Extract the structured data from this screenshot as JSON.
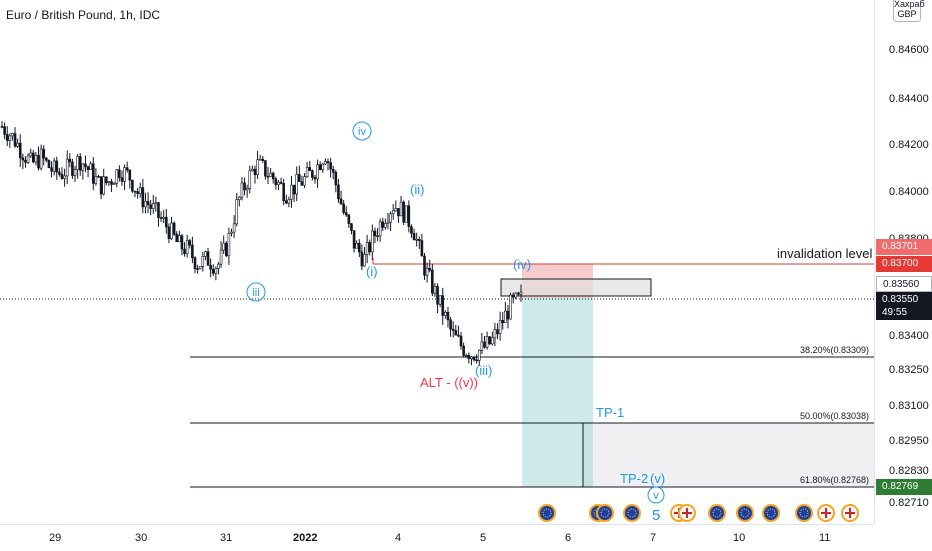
{
  "title": "Euro / British Pound, 1h, IDC",
  "currency_box": {
    "line1": "Хахраб",
    "line2": "GBP"
  },
  "price_axis": {
    "ticks": [
      "0.84600",
      "0.84400",
      "0.84200",
      "0.84000",
      "0.83800",
      "0.83400",
      "0.83250",
      "0.83100",
      "0.82950",
      "0.82830",
      "0.82710"
    ],
    "tags": {
      "invalidation_top": "0.83701",
      "invalidation_bottom": "0.83700",
      "box_top": "0.83560",
      "current_price": "0.83550",
      "countdown": "49:55",
      "tp2": "0.82769"
    }
  },
  "time_axis": {
    "labels": [
      "29",
      "30",
      "31",
      "2022",
      "4",
      "5",
      "6",
      "7",
      "10",
      "11"
    ]
  },
  "annotations": {
    "invalidation": "invalidation level",
    "fib_382": "38.20%(0.83309)",
    "fib_500": "50.00%(0.83038)",
    "fib_618": "61.80%(0.82768)",
    "tp1": "TP-1",
    "tp2": "TP-2",
    "wave_iv": "iv",
    "wave_ii": "(ii)",
    "wave_i": "(i)",
    "wave_iii_circle": "iii",
    "wave_iv_paren": "(iv)",
    "wave_iii_paren": "(iii)",
    "alt_label": "ALT - ((v))",
    "wave_v_paren": "(v)",
    "wave_v_circle": "v",
    "wave_5": "5"
  },
  "colors": {
    "bull_bear": "#131722",
    "wave_blue": "#2196f3",
    "alt_red": "#f23645",
    "invalidation_red": "#e53935",
    "current_price_tag": "#131722",
    "tp2_tag": "#2e7d32",
    "teal_zone": "#26a69a",
    "red_zone": "#ef9a9a"
  },
  "chart_data": {
    "type": "candlestick",
    "instrument": "Euro / British Pound",
    "timeframe": "1h",
    "current_price": 0.8355,
    "levels": [
      {
        "label": "invalidation level",
        "price": 0.837
      },
      {
        "label": "38.20%",
        "price": 0.83309
      },
      {
        "label": "50.00%",
        "price": 0.83038
      },
      {
        "label": "61.80%",
        "price": 0.82768
      }
    ],
    "close_path": [
      0.8428,
      0.8424,
      0.8418,
      0.8412,
      0.8415,
      0.841,
      0.8408,
      0.8411,
      0.8414,
      0.8409,
      0.8403,
      0.8405,
      0.841,
      0.8407,
      0.8399,
      0.8395,
      0.839,
      0.8385,
      0.8378,
      0.8376,
      0.837,
      0.8372,
      0.8369,
      0.8378,
      0.8395,
      0.8405,
      0.8412,
      0.8409,
      0.8405,
      0.84,
      0.8403,
      0.8406,
      0.841,
      0.8417,
      0.8405,
      0.839,
      0.8378,
      0.8372,
      0.8382,
      0.839,
      0.8395,
      0.8392,
      0.8385,
      0.837,
      0.836,
      0.835,
      0.834,
      0.8335,
      0.8332,
      0.8334,
      0.8337,
      0.8345,
      0.8353,
      0.8355
    ]
  }
}
